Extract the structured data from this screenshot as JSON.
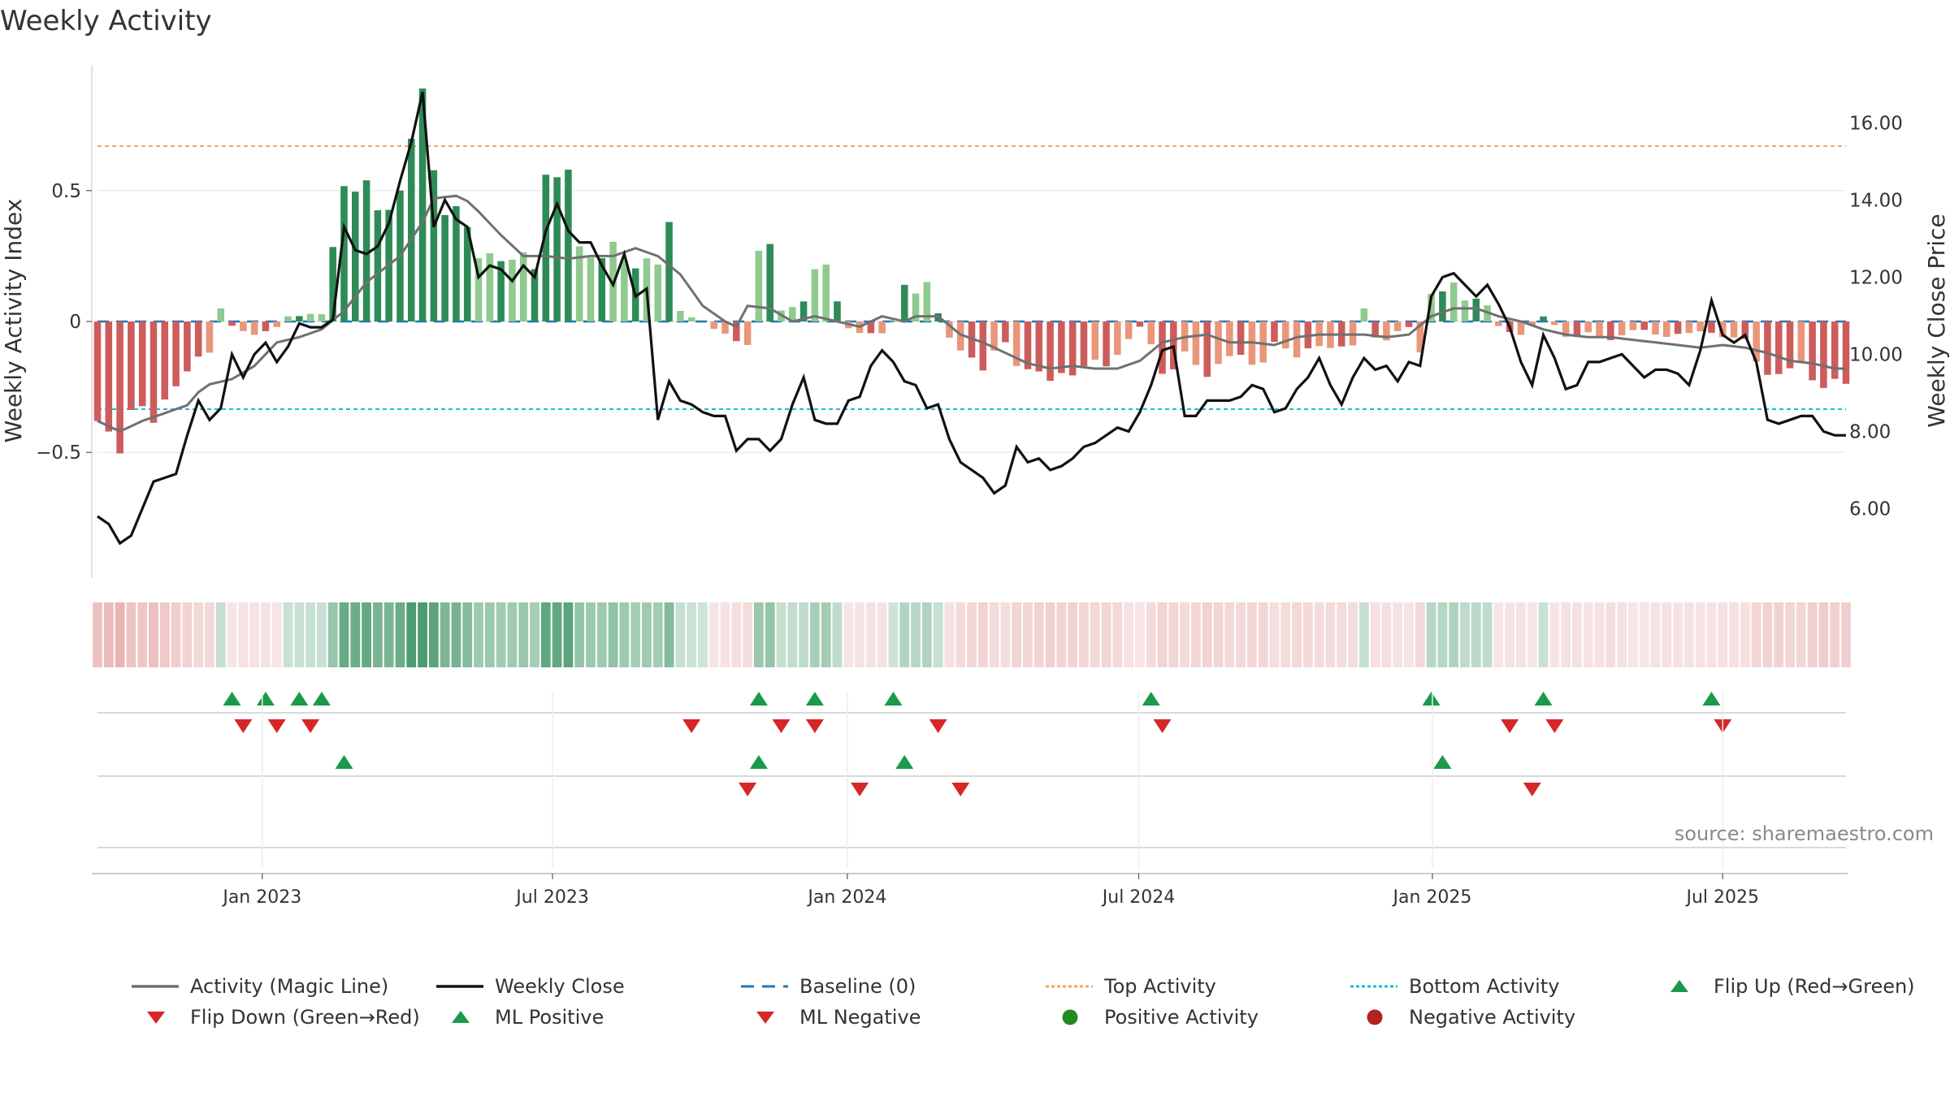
{
  "title": "Weekly Activity",
  "source": "source: sharemaestro.com",
  "colors": {
    "strong_green": "#2e8b57",
    "light_green": "#8fca8f",
    "strong_red": "#cd5c5c",
    "light_red": "#e9967a",
    "magic_line": "#707070",
    "close_line": "#111111",
    "baseline": "#1f77b4",
    "top": "#f4a460",
    "bottom": "#17becf",
    "flip_up": "#1a9a4a",
    "flip_down": "#d62728",
    "positive": "#228b22",
    "negative": "#b22222"
  },
  "legend": [
    {
      "label": "Activity (Magic Line)",
      "icon": "magic-line"
    },
    {
      "label": "Weekly Close",
      "icon": "close-line"
    },
    {
      "label": "Baseline (0)",
      "icon": "dashed-line"
    },
    {
      "label": "Top Activity",
      "icon": "dotted-line-orange"
    },
    {
      "label": "Bottom Activity",
      "icon": "dotted-line-cyan"
    },
    {
      "label": "Flip Up (Red→Green)",
      "icon": "triangle-up-green"
    },
    {
      "label": "Flip Down (Green→Red)",
      "icon": "triangle-down-red"
    },
    {
      "label": "ML Positive",
      "icon": "triangle-up-green"
    },
    {
      "label": "ML Negative",
      "icon": "triangle-down-red"
    },
    {
      "label": "Positive Activity",
      "icon": "circle-green"
    },
    {
      "label": "Negative Activity",
      "icon": "circle-red"
    }
  ],
  "chart_data": {
    "type": "bar+line",
    "title": "Weekly Activity",
    "ylabel_left": "Weekly Activity Index",
    "ylabel_right": "Weekly Close Price",
    "ylim_left": [
      -0.98,
      0.98
    ],
    "ylim_right": [
      4.2,
      17.5
    ],
    "left_ticks": [
      {
        "v": 0.5,
        "label": "0.5"
      },
      {
        "v": 0,
        "label": "0"
      },
      {
        "v": -0.5,
        "label": "−0.5"
      }
    ],
    "right_ticks": [
      {
        "v": 16,
        "label": "16.00"
      },
      {
        "v": 14,
        "label": "14.00"
      },
      {
        "v": 12,
        "label": "12.00"
      },
      {
        "v": 10,
        "label": "10.00"
      },
      {
        "v": 8,
        "label": "8.00"
      },
      {
        "v": 6,
        "label": "6.00"
      }
    ],
    "x_start": "2022-10-24",
    "week_count": 157,
    "x_ticks": [
      {
        "label": "Jan 2023",
        "week": 14.7
      },
      {
        "label": "Jul 2023",
        "week": 40.6
      },
      {
        "label": "Jan 2024",
        "week": 66.9
      },
      {
        "label": "Jul 2024",
        "week": 92.9
      },
      {
        "label": "Jan 2025",
        "week": 119.1
      },
      {
        "label": "Jul 2025",
        "week": 145.0
      }
    ],
    "top_activity": 0.67,
    "bottom_activity": -0.335,
    "baseline": 0,
    "activity_anchors": [
      [
        0,
        -0.38
      ],
      [
        2,
        -0.44
      ],
      [
        4,
        -0.36
      ],
      [
        6,
        -0.3
      ],
      [
        8,
        -0.2
      ],
      [
        10,
        -0.1
      ],
      [
        12,
        -0.02
      ],
      [
        14,
        -0.05
      ],
      [
        16,
        -0.02
      ],
      [
        18,
        0.02
      ],
      [
        20,
        0.03
      ],
      [
        22,
        0.55
      ],
      [
        24,
        0.45
      ],
      [
        27,
        0.52
      ],
      [
        28,
        0.69
      ],
      [
        30,
        0.6
      ],
      [
        32,
        0.38
      ],
      [
        34,
        0.28
      ],
      [
        37,
        0.22
      ],
      [
        39,
        0.25
      ],
      [
        40,
        0.58
      ],
      [
        43,
        0.28
      ],
      [
        46,
        0.25
      ],
      [
        49,
        0.23
      ],
      [
        50,
        0.22
      ],
      [
        51,
        0.12
      ],
      [
        52,
        0.04
      ],
      [
        54,
        0.0
      ],
      [
        56,
        -0.05
      ],
      [
        58,
        -0.1
      ],
      [
        59,
        -0.03
      ],
      [
        60,
        0.25
      ],
      [
        61,
        0.05
      ],
      [
        64,
        0.08
      ],
      [
        65,
        0.2
      ],
      [
        67,
        -0.03
      ],
      [
        70,
        -0.05
      ],
      [
        72,
        0.05
      ],
      [
        74,
        0.14
      ],
      [
        76,
        -0.06
      ],
      [
        79,
        -0.18
      ],
      [
        81,
        -0.08
      ],
      [
        83,
        -0.2
      ],
      [
        85,
        -0.22
      ],
      [
        87,
        -0.18
      ],
      [
        89,
        -0.18
      ],
      [
        91,
        -0.12
      ],
      [
        93,
        -0.02
      ],
      [
        95,
        -0.18
      ],
      [
        97,
        -0.14
      ],
      [
        99,
        -0.2
      ],
      [
        101,
        -0.12
      ],
      [
        103,
        -0.18
      ],
      [
        105,
        -0.08
      ],
      [
        107,
        -0.14
      ],
      [
        109,
        -0.08
      ],
      [
        111,
        -0.12
      ],
      [
        113,
        -0.05
      ],
      [
        115,
        -0.07
      ],
      [
        117,
        -0.02
      ],
      [
        118,
        -0.1
      ],
      [
        119,
        0.12
      ],
      [
        120,
        0.12
      ],
      [
        121,
        0.15
      ],
      [
        122,
        0.08
      ],
      [
        124,
        0.07
      ],
      [
        125,
        -0.02
      ],
      [
        127,
        -0.05
      ],
      [
        129,
        0.02
      ],
      [
        131,
        -0.05
      ],
      [
        133,
        -0.05
      ],
      [
        135,
        -0.07
      ],
      [
        137,
        -0.03
      ],
      [
        139,
        -0.05
      ],
      [
        141,
        -0.05
      ],
      [
        143,
        -0.04
      ],
      [
        145,
        -0.05
      ],
      [
        147,
        -0.08
      ],
      [
        149,
        -0.2
      ],
      [
        151,
        -0.18
      ],
      [
        153,
        -0.2
      ],
      [
        155,
        -0.25
      ],
      [
        156,
        -0.24
      ]
    ],
    "activity_overrides": [
      [
        11,
        0.05
      ],
      [
        17,
        0.02
      ],
      [
        27,
        0.5
      ],
      [
        29,
        0.89
      ],
      [
        42,
        0.58
      ],
      [
        51,
        0.38
      ],
      [
        59,
        0.27
      ],
      [
        64,
        0.2
      ],
      [
        72,
        0.14
      ],
      [
        113,
        0.05
      ]
    ],
    "weekly_close_anchors": [
      [
        0,
        5.8
      ],
      [
        1,
        5.6
      ],
      [
        2,
        5.1
      ],
      [
        3,
        5.3
      ],
      [
        4,
        6.0
      ],
      [
        5,
        6.7
      ],
      [
        6,
        6.8
      ],
      [
        7,
        6.9
      ],
      [
        8,
        7.9
      ],
      [
        9,
        8.8
      ],
      [
        10,
        8.3
      ],
      [
        11,
        8.6
      ],
      [
        12,
        10.0
      ],
      [
        13,
        9.4
      ],
      [
        14,
        10.0
      ],
      [
        15,
        10.3
      ],
      [
        16,
        9.8
      ],
      [
        17,
        10.2
      ],
      [
        18,
        10.8
      ],
      [
        19,
        10.7
      ],
      [
        20,
        10.7
      ],
      [
        21,
        10.9
      ],
      [
        22,
        13.3
      ],
      [
        23,
        12.7
      ],
      [
        24,
        12.6
      ],
      [
        25,
        12.8
      ],
      [
        26,
        13.4
      ],
      [
        27,
        14.5
      ],
      [
        28,
        15.5
      ],
      [
        29,
        16.8
      ],
      [
        30,
        13.3
      ],
      [
        31,
        14.0
      ],
      [
        32,
        13.5
      ],
      [
        33,
        13.3
      ],
      [
        34,
        12.0
      ],
      [
        35,
        12.3
      ],
      [
        36,
        12.2
      ],
      [
        37,
        11.9
      ],
      [
        38,
        12.3
      ],
      [
        39,
        12.0
      ],
      [
        40,
        13.2
      ],
      [
        41,
        13.9
      ],
      [
        42,
        13.2
      ],
      [
        43,
        12.9
      ],
      [
        44,
        12.9
      ],
      [
        45,
        12.3
      ],
      [
        46,
        11.8
      ],
      [
        47,
        12.6
      ],
      [
        48,
        11.5
      ],
      [
        49,
        11.7
      ],
      [
        50,
        8.3
      ],
      [
        51,
        9.3
      ],
      [
        52,
        8.8
      ],
      [
        53,
        8.7
      ],
      [
        54,
        8.5
      ],
      [
        55,
        8.4
      ],
      [
        56,
        8.4
      ],
      [
        57,
        7.5
      ],
      [
        58,
        7.8
      ],
      [
        59,
        7.8
      ],
      [
        60,
        7.5
      ],
      [
        61,
        7.8
      ],
      [
        62,
        8.7
      ],
      [
        63,
        9.4
      ],
      [
        64,
        8.3
      ],
      [
        65,
        8.2
      ],
      [
        66,
        8.2
      ],
      [
        67,
        8.8
      ],
      [
        68,
        8.9
      ],
      [
        69,
        9.7
      ],
      [
        70,
        10.1
      ],
      [
        71,
        9.8
      ],
      [
        72,
        9.3
      ],
      [
        73,
        9.2
      ],
      [
        74,
        8.6
      ],
      [
        75,
        8.7
      ],
      [
        76,
        7.8
      ],
      [
        77,
        7.2
      ],
      [
        78,
        7.0
      ],
      [
        79,
        6.8
      ],
      [
        80,
        6.4
      ],
      [
        81,
        6.6
      ],
      [
        82,
        7.6
      ],
      [
        83,
        7.2
      ],
      [
        84,
        7.3
      ],
      [
        85,
        7.0
      ],
      [
        86,
        7.1
      ],
      [
        87,
        7.3
      ],
      [
        88,
        7.6
      ],
      [
        89,
        7.7
      ],
      [
        90,
        7.9
      ],
      [
        91,
        8.1
      ],
      [
        92,
        8.0
      ],
      [
        93,
        8.5
      ],
      [
        94,
        9.2
      ],
      [
        95,
        10.1
      ],
      [
        96,
        10.2
      ],
      [
        97,
        8.4
      ],
      [
        98,
        8.4
      ],
      [
        99,
        8.8
      ],
      [
        100,
        8.8
      ],
      [
        101,
        8.8
      ],
      [
        102,
        8.9
      ],
      [
        103,
        9.2
      ],
      [
        104,
        9.1
      ],
      [
        105,
        8.5
      ],
      [
        106,
        8.6
      ],
      [
        107,
        9.1
      ],
      [
        108,
        9.4
      ],
      [
        109,
        9.9
      ],
      [
        110,
        9.2
      ],
      [
        111,
        8.7
      ],
      [
        112,
        9.4
      ],
      [
        113,
        9.9
      ],
      [
        114,
        9.6
      ],
      [
        115,
        9.7
      ],
      [
        116,
        9.3
      ],
      [
        117,
        9.8
      ],
      [
        118,
        9.7
      ],
      [
        119,
        11.5
      ],
      [
        120,
        12.0
      ],
      [
        121,
        12.1
      ],
      [
        122,
        11.8
      ],
      [
        123,
        11.5
      ],
      [
        124,
        11.8
      ],
      [
        125,
        11.3
      ],
      [
        126,
        10.7
      ],
      [
        127,
        9.8
      ],
      [
        128,
        9.2
      ],
      [
        129,
        10.5
      ],
      [
        130,
        9.9
      ],
      [
        131,
        9.1
      ],
      [
        132,
        9.2
      ],
      [
        133,
        9.8
      ],
      [
        134,
        9.8
      ],
      [
        135,
        9.9
      ],
      [
        136,
        10.0
      ],
      [
        137,
        9.7
      ],
      [
        138,
        9.4
      ],
      [
        139,
        9.6
      ],
      [
        140,
        9.6
      ],
      [
        141,
        9.5
      ],
      [
        142,
        9.2
      ],
      [
        143,
        10.1
      ],
      [
        144,
        11.4
      ],
      [
        145,
        10.5
      ],
      [
        146,
        10.3
      ],
      [
        147,
        10.5
      ],
      [
        148,
        9.8
      ],
      [
        149,
        8.3
      ],
      [
        150,
        8.2
      ],
      [
        151,
        8.3
      ],
      [
        152,
        8.4
      ],
      [
        153,
        8.4
      ],
      [
        154,
        8.0
      ],
      [
        155,
        7.9
      ],
      [
        156,
        7.9
      ]
    ],
    "magic_line_anchors": [
      [
        0,
        -0.38
      ],
      [
        2,
        -0.42
      ],
      [
        4,
        -0.38
      ],
      [
        6,
        -0.35
      ],
      [
        8,
        -0.32
      ],
      [
        9,
        -0.27
      ],
      [
        10,
        -0.24
      ],
      [
        12,
        -0.22
      ],
      [
        14,
        -0.17
      ],
      [
        16,
        -0.08
      ],
      [
        18,
        -0.06
      ],
      [
        20,
        -0.03
      ],
      [
        22,
        0.04
      ],
      [
        24,
        0.15
      ],
      [
        27,
        0.25
      ],
      [
        29,
        0.38
      ],
      [
        30,
        0.47
      ],
      [
        32,
        0.48
      ],
      [
        33,
        0.46
      ],
      [
        34,
        0.42
      ],
      [
        36,
        0.33
      ],
      [
        38,
        0.25
      ],
      [
        40,
        0.25
      ],
      [
        42,
        0.24
      ],
      [
        44,
        0.25
      ],
      [
        46,
        0.25
      ],
      [
        48,
        0.28
      ],
      [
        50,
        0.25
      ],
      [
        52,
        0.18
      ],
      [
        54,
        0.06
      ],
      [
        55,
        0.03
      ],
      [
        56,
        0.0
      ],
      [
        57,
        -0.02
      ],
      [
        58,
        0.06
      ],
      [
        60,
        0.05
      ],
      [
        62,
        0.0
      ],
      [
        64,
        0.02
      ],
      [
        66,
        0.0
      ],
      [
        68,
        -0.02
      ],
      [
        70,
        0.02
      ],
      [
        72,
        0.0
      ],
      [
        73,
        0.02
      ],
      [
        75,
        0.02
      ],
      [
        77,
        -0.05
      ],
      [
        79,
        -0.08
      ],
      [
        81,
        -0.12
      ],
      [
        83,
        -0.16
      ],
      [
        85,
        -0.18
      ],
      [
        87,
        -0.17
      ],
      [
        89,
        -0.18
      ],
      [
        91,
        -0.18
      ],
      [
        93,
        -0.15
      ],
      [
        95,
        -0.08
      ],
      [
        97,
        -0.06
      ],
      [
        99,
        -0.05
      ],
      [
        101,
        -0.08
      ],
      [
        103,
        -0.08
      ],
      [
        105,
        -0.09
      ],
      [
        107,
        -0.06
      ],
      [
        109,
        -0.05
      ],
      [
        111,
        -0.05
      ],
      [
        113,
        -0.05
      ],
      [
        115,
        -0.06
      ],
      [
        117,
        -0.05
      ],
      [
        119,
        0.02
      ],
      [
        121,
        0.05
      ],
      [
        123,
        0.05
      ],
      [
        125,
        0.02
      ],
      [
        127,
        0.0
      ],
      [
        129,
        -0.03
      ],
      [
        131,
        -0.05
      ],
      [
        133,
        -0.06
      ],
      [
        135,
        -0.06
      ],
      [
        137,
        -0.07
      ],
      [
        139,
        -0.08
      ],
      [
        141,
        -0.09
      ],
      [
        143,
        -0.1
      ],
      [
        145,
        -0.09
      ],
      [
        147,
        -0.1
      ],
      [
        149,
        -0.12
      ],
      [
        151,
        -0.15
      ],
      [
        153,
        -0.16
      ],
      [
        155,
        -0.18
      ],
      [
        156,
        -0.18
      ]
    ],
    "flip_up_weeks": [
      12,
      15,
      18,
      20,
      59,
      64,
      71,
      94,
      119,
      129,
      144
    ],
    "flip_down_weeks": [
      13,
      16,
      19,
      53,
      61,
      64,
      75,
      95,
      126,
      130,
      145
    ],
    "ml_positive_weeks": [
      22,
      59,
      72,
      120
    ],
    "ml_negative_weeks": [
      58,
      68,
      77,
      128
    ],
    "positive_activity_weeks": [],
    "negative_activity_weeks": []
  }
}
